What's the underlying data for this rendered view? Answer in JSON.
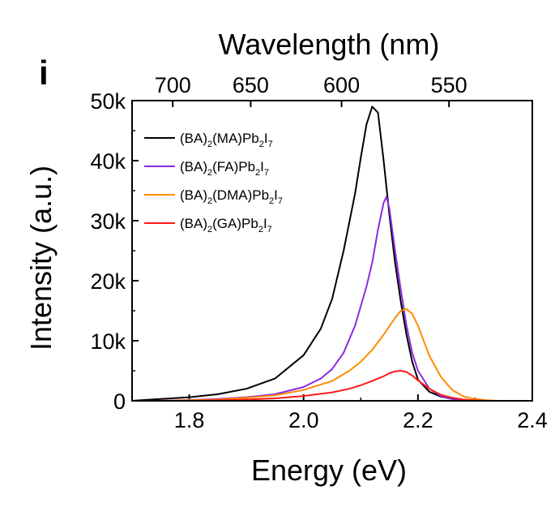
{
  "chart_data": {
    "type": "line",
    "panel_label": "i",
    "xlabel": "Energy (eV)",
    "ylabel": "Intensity (a.u.)",
    "top_xlabel": "Wavelength (nm)",
    "xlim": [
      1.7,
      2.4
    ],
    "ylim": [
      0,
      50000
    ],
    "x_ticks": [
      1.8,
      2.0,
      2.2,
      2.4
    ],
    "x_tick_labels": [
      "1.8",
      "2.0",
      "2.2",
      "2.4"
    ],
    "y_ticks": [
      0,
      10000,
      20000,
      30000,
      40000,
      50000
    ],
    "y_tick_labels": [
      "0",
      "10k",
      "20k",
      "30k",
      "40k",
      "50k"
    ],
    "top_ticks_nm": [
      700,
      650,
      600,
      550
    ],
    "top_tick_labels": [
      "700",
      "650",
      "600",
      "550"
    ],
    "grid": false,
    "legend_position": "top-left",
    "series": [
      {
        "name": "(BA)2(MA)Pb2I7",
        "legend": {
          "a": "(BA)",
          "b": "2",
          "c": "(MA)Pb",
          "d": "2",
          "e": "I",
          "f": "7"
        },
        "color": "#000000",
        "x": [
          1.7,
          1.75,
          1.8,
          1.85,
          1.9,
          1.95,
          2.0,
          2.03,
          2.05,
          2.07,
          2.09,
          2.1,
          2.11,
          2.12,
          2.13,
          2.14,
          2.15,
          2.16,
          2.17,
          2.18,
          2.19,
          2.2,
          2.22,
          2.24,
          2.26,
          2.28,
          2.3
        ],
        "y": [
          0,
          300,
          600,
          1100,
          2000,
          3700,
          7600,
          12000,
          17000,
          25000,
          34500,
          40500,
          46000,
          49000,
          48000,
          40000,
          31000,
          23000,
          16500,
          11000,
          6500,
          3500,
          1500,
          700,
          300,
          100,
          0
        ]
      },
      {
        "name": "(BA)2(FA)Pb2I7",
        "legend": {
          "a": "(BA)",
          "b": "2",
          "c": "(FA)Pb",
          "d": "2",
          "e": "I",
          "f": "7"
        },
        "color": "#8a2be2",
        "x": [
          1.75,
          1.85,
          1.9,
          1.95,
          2.0,
          2.03,
          2.05,
          2.07,
          2.09,
          2.11,
          2.12,
          2.13,
          2.14,
          2.145,
          2.15,
          2.16,
          2.17,
          2.18,
          2.19,
          2.2,
          2.22,
          2.24,
          2.26,
          2.28,
          2.3
        ],
        "y": [
          0,
          300,
          600,
          1100,
          2300,
          3700,
          5300,
          8000,
          12500,
          19000,
          23000,
          28500,
          33000,
          34000,
          32000,
          25000,
          18500,
          12500,
          8000,
          5000,
          2000,
          800,
          300,
          100,
          0
        ]
      },
      {
        "name": "(BA)2(DMA)Pb2I7",
        "legend": {
          "a": "(BA)",
          "b": "2",
          "c": "(DMA)Pb",
          "d": "2",
          "e": "I",
          "f": "7"
        },
        "color": "#ff8c00",
        "x": [
          1.75,
          1.85,
          1.9,
          1.95,
          2.0,
          2.05,
          2.08,
          2.1,
          2.12,
          2.14,
          2.16,
          2.17,
          2.18,
          2.19,
          2.2,
          2.21,
          2.22,
          2.24,
          2.26,
          2.28,
          2.3,
          2.32,
          2.34
        ],
        "y": [
          0,
          200,
          500,
          900,
          1800,
          3300,
          5000,
          6500,
          8500,
          11000,
          13800,
          15000,
          15300,
          14500,
          12500,
          10000,
          7500,
          4000,
          1800,
          700,
          300,
          100,
          0
        ]
      },
      {
        "name": "(BA)2(GA)Pb2I7",
        "legend": {
          "a": "(BA)",
          "b": "2",
          "c": "(GA)Pb",
          "d": "2",
          "e": "I",
          "f": "7"
        },
        "color": "#ff1a1a",
        "x": [
          1.8,
          1.9,
          1.95,
          2.0,
          2.05,
          2.08,
          2.1,
          2.12,
          2.14,
          2.15,
          2.16,
          2.17,
          2.18,
          2.19,
          2.2,
          2.22,
          2.24,
          2.26,
          2.28,
          2.3,
          2.32
        ],
        "y": [
          0,
          200,
          400,
          800,
          1400,
          2000,
          2600,
          3300,
          4100,
          4600,
          4900,
          5000,
          4800,
          4200,
          3400,
          2000,
          1000,
          500,
          200,
          80,
          0
        ]
      }
    ]
  }
}
